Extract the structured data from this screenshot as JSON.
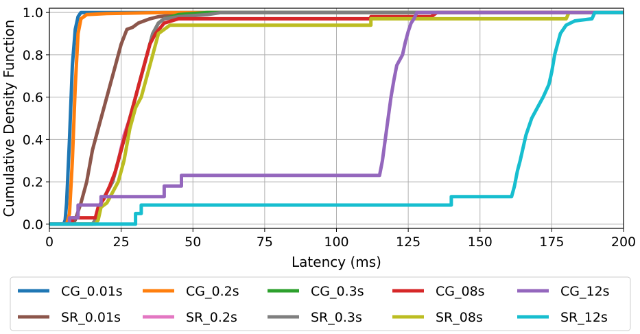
{
  "chart_data": {
    "type": "line",
    "title": "",
    "xlabel": "Latency (ms)",
    "ylabel": "Cumulative Density Function",
    "xlim": [
      0,
      200
    ],
    "ylim": [
      -0.02,
      1.02
    ],
    "xticks": [
      0,
      25,
      50,
      75,
      100,
      125,
      150,
      175,
      200
    ],
    "xtick_labels": [
      "0",
      "25",
      "50",
      "75",
      "100",
      "125",
      "150",
      "175",
      "200"
    ],
    "yticks": [
      0.0,
      0.2,
      0.4,
      0.6,
      0.8,
      1.0
    ],
    "ytick_labels": [
      "0.0",
      "0.2",
      "0.4",
      "0.6",
      "0.8",
      "1.0"
    ],
    "grid": true,
    "legend_position": "bottom",
    "series": [
      {
        "name": "CG_0.01s",
        "color": "#1f77b4",
        "points": [
          [
            0,
            0
          ],
          [
            5,
            0
          ],
          [
            5.5,
            0.02
          ],
          [
            6,
            0.1
          ],
          [
            7,
            0.4
          ],
          [
            8,
            0.75
          ],
          [
            9,
            0.92
          ],
          [
            10,
            0.98
          ],
          [
            11,
            1.0
          ],
          [
            200,
            1.0
          ]
        ]
      },
      {
        "name": "SR_0.01s",
        "color": "#8c564b",
        "points": [
          [
            0,
            0
          ],
          [
            8,
            0
          ],
          [
            9,
            0.02
          ],
          [
            11,
            0.1
          ],
          [
            13,
            0.2
          ],
          [
            15,
            0.35
          ],
          [
            17,
            0.45
          ],
          [
            19,
            0.55
          ],
          [
            21,
            0.65
          ],
          [
            23,
            0.75
          ],
          [
            25,
            0.85
          ],
          [
            27,
            0.92
          ],
          [
            29,
            0.93
          ],
          [
            31,
            0.95
          ],
          [
            33,
            0.96
          ],
          [
            35,
            0.97
          ],
          [
            38,
            0.98
          ],
          [
            45,
            0.99
          ],
          [
            55,
            1.0
          ],
          [
            200,
            1.0
          ]
        ]
      },
      {
        "name": "CG_0.2s",
        "color": "#ff7f0e",
        "points": [
          [
            0,
            0
          ],
          [
            6,
            0
          ],
          [
            7,
            0.05
          ],
          [
            8,
            0.3
          ],
          [
            9,
            0.65
          ],
          [
            10,
            0.9
          ],
          [
            11,
            0.97
          ],
          [
            13,
            0.99
          ],
          [
            20,
            0.995
          ],
          [
            40,
            1.0
          ],
          [
            200,
            1.0
          ]
        ]
      },
      {
        "name": "SR_0.2s",
        "color": "#e377c2",
        "points": [
          [
            0,
            0
          ],
          [
            15,
            0
          ],
          [
            16,
            0.02
          ],
          [
            18,
            0.1
          ],
          [
            20,
            0.15
          ],
          [
            22,
            0.2
          ],
          [
            24,
            0.3
          ],
          [
            26,
            0.42
          ],
          [
            28,
            0.5
          ],
          [
            30,
            0.6
          ],
          [
            32,
            0.7
          ],
          [
            34,
            0.8
          ],
          [
            36,
            0.9
          ],
          [
            38,
            0.95
          ],
          [
            40,
            0.97
          ],
          [
            50,
            0.99
          ],
          [
            60,
            1.0
          ],
          [
            200,
            1.0
          ]
        ]
      },
      {
        "name": "CG_0.3s",
        "color": "#2ca02c",
        "points": [
          [
            0,
            0
          ],
          [
            15,
            0
          ],
          [
            16,
            0.02
          ],
          [
            18,
            0.1
          ],
          [
            20,
            0.15
          ],
          [
            22,
            0.2
          ],
          [
            24,
            0.3
          ],
          [
            26,
            0.4
          ],
          [
            28,
            0.5
          ],
          [
            30,
            0.6
          ],
          [
            32,
            0.7
          ],
          [
            34,
            0.8
          ],
          [
            36,
            0.9
          ],
          [
            38,
            0.95
          ],
          [
            40,
            0.97
          ],
          [
            45,
            0.99
          ],
          [
            55,
            1.0
          ],
          [
            200,
            1.0
          ]
        ]
      },
      {
        "name": "SR_0.3s",
        "color": "#7f7f7f",
        "points": [
          [
            0,
            0
          ],
          [
            15,
            0
          ],
          [
            16,
            0.02
          ],
          [
            18,
            0.1
          ],
          [
            20,
            0.15
          ],
          [
            22,
            0.2
          ],
          [
            24,
            0.3
          ],
          [
            26,
            0.4
          ],
          [
            28,
            0.5
          ],
          [
            30,
            0.6
          ],
          [
            32,
            0.7
          ],
          [
            34,
            0.8
          ],
          [
            36,
            0.9
          ],
          [
            38,
            0.95
          ],
          [
            40,
            0.97
          ],
          [
            45,
            0.98
          ],
          [
            55,
            0.99
          ],
          [
            60,
            1.0
          ],
          [
            200,
            1.0
          ]
        ]
      },
      {
        "name": "CG_08s",
        "color": "#d62728",
        "points": [
          [
            0,
            0
          ],
          [
            8,
            0
          ],
          [
            8,
            0.03
          ],
          [
            16,
            0.03
          ],
          [
            17,
            0.08
          ],
          [
            19,
            0.12
          ],
          [
            21,
            0.18
          ],
          [
            23,
            0.25
          ],
          [
            25,
            0.35
          ],
          [
            27,
            0.45
          ],
          [
            29,
            0.55
          ],
          [
            31,
            0.65
          ],
          [
            33,
            0.75
          ],
          [
            35,
            0.85
          ],
          [
            37,
            0.9
          ],
          [
            40,
            0.95
          ],
          [
            45,
            0.97
          ],
          [
            112,
            0.97
          ],
          [
            112,
            0.98
          ],
          [
            133,
            0.98
          ],
          [
            134,
            0.99
          ],
          [
            135,
            1.0
          ],
          [
            200,
            1.0
          ]
        ]
      },
      {
        "name": "SR_08s",
        "color": "#bcbd22",
        "points": [
          [
            0,
            0
          ],
          [
            16,
            0
          ],
          [
            17,
            0.02
          ],
          [
            18,
            0.08
          ],
          [
            20,
            0.1
          ],
          [
            22,
            0.15
          ],
          [
            24,
            0.2
          ],
          [
            26,
            0.3
          ],
          [
            28,
            0.45
          ],
          [
            30,
            0.55
          ],
          [
            32,
            0.6
          ],
          [
            34,
            0.7
          ],
          [
            36,
            0.8
          ],
          [
            38,
            0.9
          ],
          [
            42,
            0.94
          ],
          [
            112,
            0.94
          ],
          [
            112,
            0.97
          ],
          [
            180,
            0.97
          ],
          [
            181,
            1.0
          ],
          [
            200,
            1.0
          ]
        ]
      },
      {
        "name": "CG_12s",
        "color": "#9467bd",
        "points": [
          [
            0,
            0
          ],
          [
            7,
            0
          ],
          [
            7,
            0.03
          ],
          [
            10,
            0.03
          ],
          [
            10,
            0.09
          ],
          [
            18,
            0.09
          ],
          [
            18,
            0.13
          ],
          [
            40,
            0.13
          ],
          [
            40,
            0.18
          ],
          [
            46,
            0.18
          ],
          [
            46,
            0.23
          ],
          [
            115,
            0.23
          ],
          [
            116,
            0.3
          ],
          [
            117,
            0.4
          ],
          [
            118,
            0.5
          ],
          [
            119,
            0.6
          ],
          [
            120,
            0.68
          ],
          [
            121,
            0.75
          ],
          [
            123,
            0.8
          ],
          [
            124,
            0.86
          ],
          [
            125,
            0.91
          ],
          [
            126,
            0.95
          ],
          [
            127,
            0.97
          ],
          [
            128,
            1.0
          ],
          [
            200,
            1.0
          ]
        ]
      },
      {
        "name": "SR_12s",
        "color": "#17becf",
        "points": [
          [
            0,
            0
          ],
          [
            30,
            0
          ],
          [
            30,
            0.05
          ],
          [
            32,
            0.05
          ],
          [
            32,
            0.09
          ],
          [
            140,
            0.09
          ],
          [
            140,
            0.13
          ],
          [
            161,
            0.13
          ],
          [
            162,
            0.18
          ],
          [
            163,
            0.25
          ],
          [
            164,
            0.3
          ],
          [
            165,
            0.36
          ],
          [
            166,
            0.42
          ],
          [
            168,
            0.5
          ],
          [
            170,
            0.55
          ],
          [
            172,
            0.6
          ],
          [
            174,
            0.66
          ],
          [
            175,
            0.72
          ],
          [
            176,
            0.8
          ],
          [
            177,
            0.85
          ],
          [
            178,
            0.9
          ],
          [
            180,
            0.94
          ],
          [
            183,
            0.96
          ],
          [
            189,
            0.97
          ],
          [
            190,
            1.0
          ],
          [
            200,
            1.0
          ]
        ]
      }
    ],
    "legend_order": [
      "CG_0.01s",
      "CG_0.2s",
      "CG_0.3s",
      "CG_08s",
      "CG_12s",
      "SR_0.01s",
      "SR_0.2s",
      "SR_0.3s",
      "SR_08s",
      "SR_12s"
    ]
  }
}
